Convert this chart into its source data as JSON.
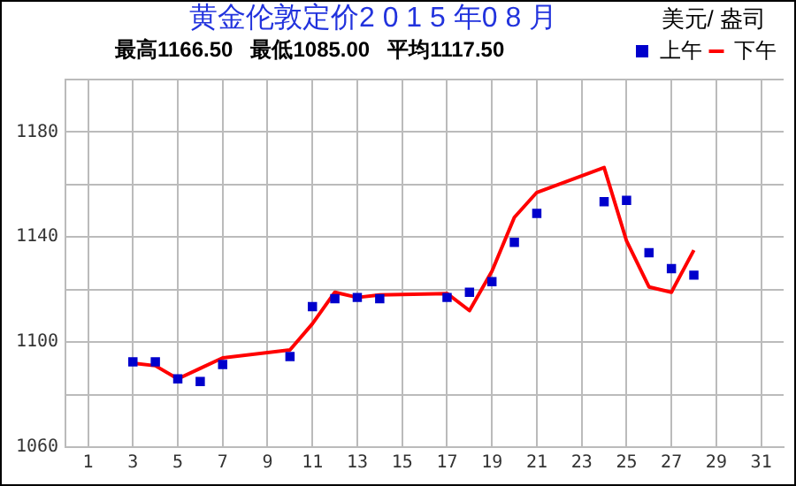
{
  "chart_data": {
    "type": "line",
    "title": "黄金伦敦定价2 0 1 5 年0 8 月",
    "subtitle": "最高1166.50   最低1085.00   平均1117.50",
    "ylabel": "美元/ 盎司",
    "x": [
      3,
      4,
      5,
      6,
      7,
      10,
      11,
      12,
      13,
      14,
      17,
      18,
      19,
      20,
      21,
      24,
      25,
      26,
      27,
      28
    ],
    "series": [
      {
        "name": "上午",
        "type": "scatter",
        "marker": "square",
        "color": "#0000cc",
        "values": [
          1092.5,
          1092.5,
          1086,
          1085,
          1091.5,
          1094.5,
          1113.5,
          1116.5,
          1117,
          1116.5,
          1117,
          1119,
          1123,
          1138,
          1149,
          1153.5,
          1154,
          1134,
          1128,
          1125.5
        ]
      },
      {
        "name": "下午",
        "type": "line",
        "marker": "none",
        "color": "#ff0000",
        "values": [
          1092,
          1091,
          1086,
          1090,
          1094,
          1097,
          1107,
          1119,
          1117,
          1118,
          1118.5,
          1112,
          1127,
          1147.5,
          1157,
          1166.5,
          1138.5,
          1121,
          1119,
          1135
        ]
      }
    ],
    "xlim": [
      0,
      32
    ],
    "xticks": [
      1,
      3,
      5,
      7,
      9,
      11,
      13,
      15,
      17,
      19,
      21,
      23,
      25,
      27,
      29,
      31
    ],
    "ylim": [
      1060,
      1200
    ],
    "yticks": [
      1060,
      {
        "value": 1080,
        "label": null
      },
      1100,
      {
        "value": 1120,
        "label": null
      },
      1140,
      {
        "value": 1160,
        "label": null
      },
      1180,
      {
        "value": 1200,
        "label": null
      }
    ],
    "grid": true,
    "legend": "top right"
  }
}
